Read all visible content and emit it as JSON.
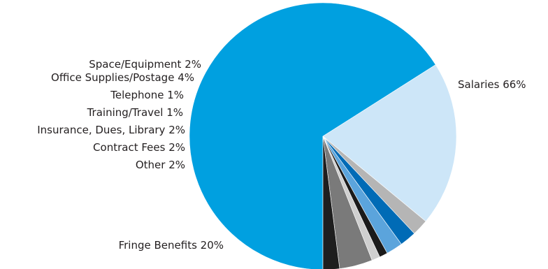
{
  "chart_data": {
    "type": "pie",
    "title": "",
    "slices": [
      {
        "label": "Salaries",
        "value": 66,
        "color": "#00a0e0",
        "value_label": "Salaries 66%"
      },
      {
        "label": "Fringe Benefits",
        "value": 20,
        "color": "#cde6f8",
        "value_label": "Fringe Benefits 20%"
      },
      {
        "label": "Other",
        "value": 2,
        "color": "#b5b5b5",
        "value_label": "Other 2%"
      },
      {
        "label": "Contract Fees",
        "value": 2,
        "color": "#006bb6",
        "value_label": "Contract Fees 2%"
      },
      {
        "label": "Insurance, Dues, Library",
        "value": 2,
        "color": "#5ba4dc",
        "value_label": "Insurance, Dues, Library 2%"
      },
      {
        "label": "Training/Travel",
        "value": 1,
        "color": "#1b1b1b",
        "value_label": "Training/Travel 1%"
      },
      {
        "label": "Telephone",
        "value": 1,
        "color": "#cfcfcf",
        "value_label": "Telephone 1%"
      },
      {
        "label": "Office Supplies/Postage",
        "value": 4,
        "color": "#7a7a7a",
        "value_label": "Office Supplies/Postage 4%"
      },
      {
        "label": "Space/Equipment",
        "value": 2,
        "color": "#1e1e1e",
        "value_label": "Space/Equipment 2%"
      }
    ],
    "legend": "none"
  }
}
